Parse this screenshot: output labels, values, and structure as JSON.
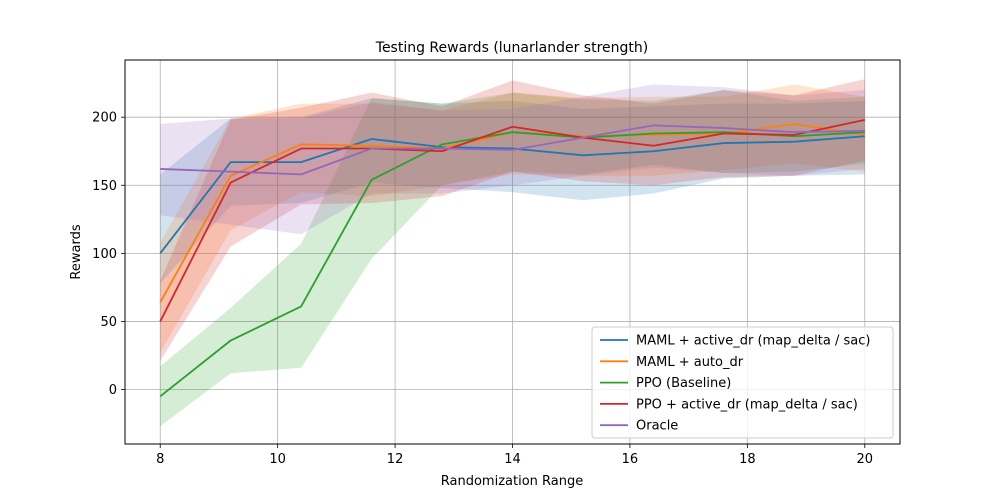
{
  "chart_data": {
    "type": "line",
    "title": "Testing Rewards (lunarlander strength)",
    "xlabel": "Randomization Range",
    "ylabel": "Rewards",
    "xlim": [
      7.4,
      20.6
    ],
    "ylim": [
      -40,
      242
    ],
    "xticks": [
      8,
      10,
      12,
      14,
      16,
      18,
      20
    ],
    "yticks": [
      0,
      50,
      100,
      150,
      200
    ],
    "grid": true,
    "legend_position": "lower-right",
    "x": [
      8,
      9.2,
      10.4,
      11.6,
      12.8,
      14,
      15.2,
      16.4,
      17.6,
      18.8,
      20
    ],
    "series": [
      {
        "name": "MAML + active_dr (map_delta / sac)",
        "color": "#1f77b4",
        "values": [
          100,
          167,
          167,
          184,
          178,
          177,
          172,
          175,
          181,
          182,
          186
        ],
        "lower": [
          78,
          135,
          137,
          152,
          148,
          145,
          139,
          144,
          155,
          157,
          158
        ],
        "upper": [
          158,
          199,
          200,
          214,
          210,
          212,
          206,
          208,
          210,
          210,
          212
        ]
      },
      {
        "name": "MAML + auto_dr",
        "color": "#ff7f0e",
        "values": [
          64,
          157,
          180,
          179,
          177,
          189,
          186,
          187,
          188,
          195,
          187
        ],
        "lower": [
          27,
          117,
          145,
          142,
          150,
          158,
          157,
          157,
          161,
          166,
          160
        ],
        "upper": [
          108,
          199,
          210,
          210,
          205,
          218,
          214,
          215,
          215,
          224,
          215
        ]
      },
      {
        "name": "PPO (Baseline)",
        "color": "#2ca02c",
        "values": [
          -5,
          36,
          61,
          154,
          180,
          189,
          185,
          188,
          189,
          186,
          189
        ],
        "lower": [
          -27,
          12,
          16,
          96,
          150,
          160,
          158,
          165,
          159,
          160,
          166
        ],
        "upper": [
          17,
          60,
          107,
          214,
          210,
          218,
          213,
          212,
          220,
          212,
          215
        ]
      },
      {
        "name": "PPO + active_dr (map_delta / sac)",
        "color": "#d62728",
        "values": [
          50,
          152,
          177,
          177,
          175,
          193,
          185,
          179,
          188,
          187,
          198
        ],
        "lower": [
          21,
          105,
          136,
          137,
          142,
          160,
          153,
          150,
          156,
          157,
          168
        ],
        "upper": [
          80,
          198,
          207,
          218,
          208,
          227,
          216,
          210,
          220,
          216,
          228
        ]
      },
      {
        "name": "Oracle",
        "color": "#9467bd",
        "values": [
          162,
          160,
          158,
          177,
          177,
          176,
          185,
          194,
          192,
          189,
          190
        ],
        "lower": [
          128,
          121,
          114,
          144,
          144,
          150,
          157,
          163,
          159,
          157,
          162
        ],
        "upper": [
          195,
          199,
          199,
          211,
          205,
          206,
          215,
          224,
          222,
          216,
          220
        ]
      }
    ]
  }
}
